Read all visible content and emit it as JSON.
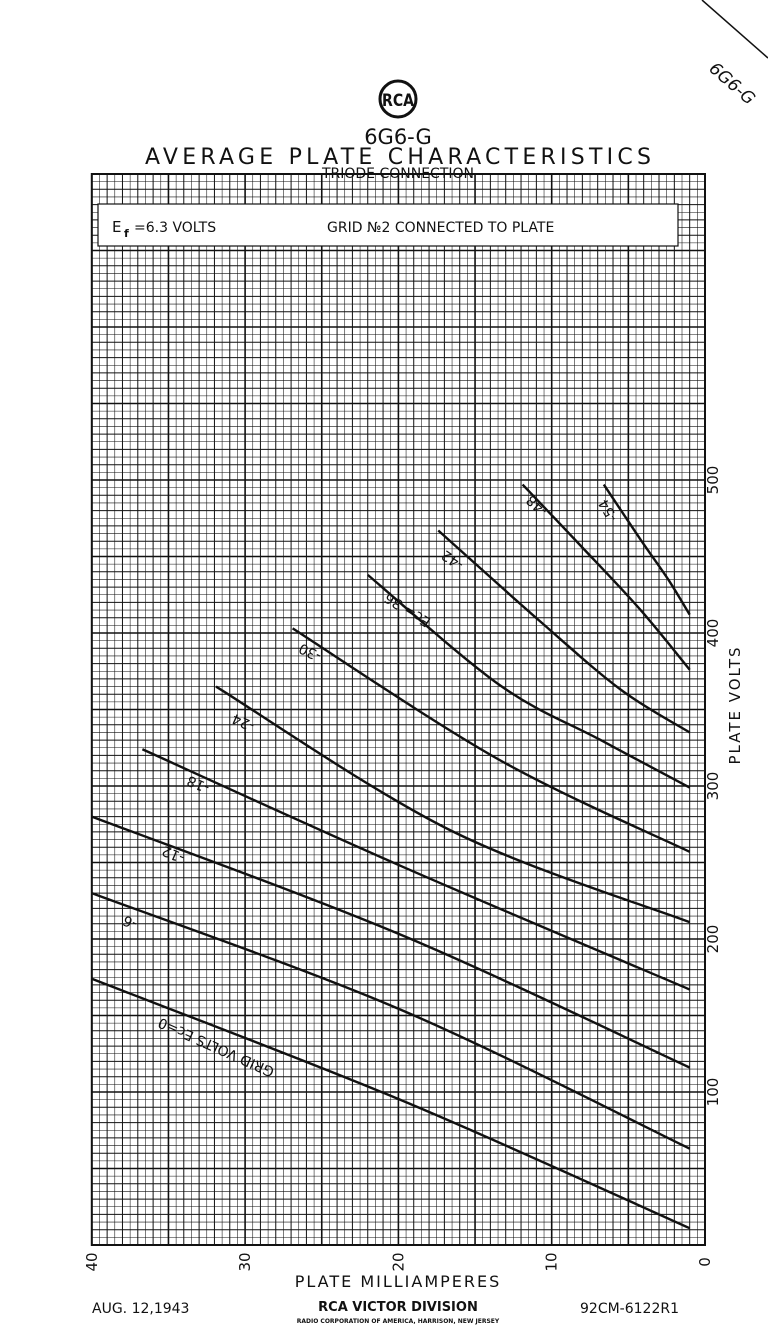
{
  "header": {
    "logo_text": "RCA",
    "tube_type": "6G6-G",
    "title": "AVERAGE PLATE CHARACTERISTICS",
    "subtitle": "TRIODE CONNECTION",
    "corner_tab": "6G6-G"
  },
  "conditions": {
    "heater": "E",
    "heater_sub": "f",
    "heater_value": "=6.3 VOLTS",
    "grid2": "GRID №2 CONNECTED TO PLATE"
  },
  "footer": {
    "date": "AUG. 12,1943",
    "division": "RCA VICTOR DIVISION",
    "company": "RADIO CORPORATION OF AMERICA, HARRISON, NEW JERSEY",
    "drawing_number": "92CM-6122R1"
  },
  "chart_data": {
    "type": "line",
    "title": "AVERAGE PLATE CHARACTERISTICS",
    "xlabel": "PLATE MILLIAMPERES",
    "ylabel": "PLATE VOLTS",
    "xlim": [
      40,
      0
    ],
    "ylim": [
      0,
      700
    ],
    "x_ticks": [
      "40",
      "30",
      "20",
      "10",
      "0"
    ],
    "y_ticks": [
      "100",
      "200",
      "300",
      "400",
      "500"
    ],
    "grid": true,
    "series": [
      {
        "name": "GRID VOLTS Ec=0",
        "points": [
          [
            40,
            174
          ],
          [
            19.9,
            95
          ],
          [
            1,
            11
          ]
        ]
      },
      {
        "name": "-6",
        "points": [
          [
            40,
            230
          ],
          [
            19.9,
            154
          ],
          [
            1,
            63
          ]
        ]
      },
      {
        "name": "-12",
        "points": [
          [
            40,
            280
          ],
          [
            19.9,
            203
          ],
          [
            1,
            116
          ]
        ]
      },
      {
        "name": "-18",
        "points": [
          [
            36.7,
            324
          ],
          [
            19.9,
            248
          ],
          [
            1,
            167
          ]
        ]
      },
      {
        "name": "-24",
        "points": [
          [
            31.9,
            365
          ],
          [
            16.6,
            271
          ],
          [
            1,
            211
          ]
        ]
      },
      {
        "name": "-30",
        "points": [
          [
            26.9,
            403
          ],
          [
            13.4,
            317
          ],
          [
            1,
            257
          ]
        ]
      },
      {
        "name": "Ec=-36",
        "points": [
          [
            22,
            438
          ],
          [
            13.4,
            366
          ],
          [
            6.8,
            330
          ],
          [
            1,
            299
          ]
        ]
      },
      {
        "name": "-42",
        "points": [
          [
            17.4,
            467
          ],
          [
            10.8,
            408
          ],
          [
            5.5,
            363
          ],
          [
            1,
            335
          ]
        ]
      },
      {
        "name": "-48",
        "points": [
          [
            11.9,
            497
          ],
          [
            8.2,
            458
          ],
          [
            4.2,
            415
          ],
          [
            1,
            376
          ]
        ]
      },
      {
        "name": "-54",
        "points": [
          [
            6.6,
            497
          ],
          [
            4.2,
            461
          ],
          [
            2.4,
            435
          ],
          [
            1,
            412
          ]
        ]
      }
    ]
  }
}
